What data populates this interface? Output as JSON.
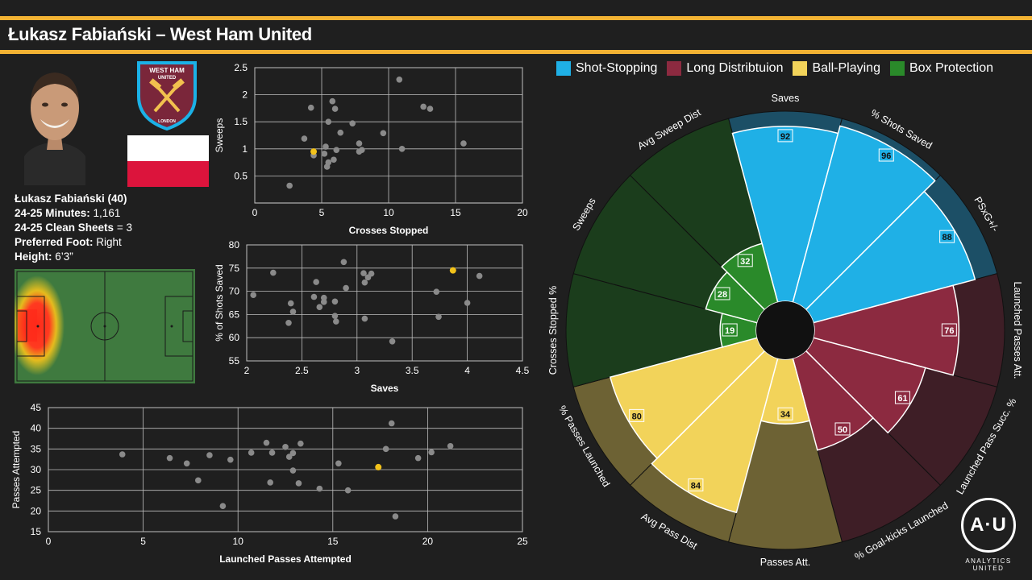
{
  "header": {
    "title": "Łukasz Fabiański – West Ham United"
  },
  "colors": {
    "accent": "#f2b233",
    "shot_stopping": "#1fb0e6",
    "long_distribution": "#8c2a40",
    "ball_playing": "#f2d35a",
    "box_protection": "#2a8a2a"
  },
  "player": {
    "name_age": "Łukasz Fabiański (40)",
    "minutes_label": "24-25 Minutes:",
    "minutes_value": "1,161",
    "clean_sheets_label": "24-25 Clean Sheets",
    "clean_sheets_value": "= 3",
    "foot_label": "Preferred Foot:",
    "foot_value": "Right",
    "height_label": "Height:",
    "height_value": "6’3”"
  },
  "crest": {
    "line1": "WEST HAM",
    "line2": "UNITED",
    "line3": "LONDON"
  },
  "legend": {
    "items": [
      {
        "label": "Shot-Stopping",
        "color": "#1fb0e6"
      },
      {
        "label": "Long Distribtuion",
        "color": "#8c2a40"
      },
      {
        "label": "Ball-Playing",
        "color": "#f2d35a"
      },
      {
        "label": "Box Protection",
        "color": "#2a8a2a"
      }
    ]
  },
  "logo": {
    "mark": "A·U",
    "text": "ANALYTICS UNITED"
  },
  "chart_data": [
    {
      "type": "scatter",
      "id": "sc1",
      "xlabel": "Crosses Stopped",
      "ylabel": "Sweeps",
      "xlim": [
        0,
        20
      ],
      "ylim": [
        0,
        2.5
      ],
      "xticks": [
        0,
        5,
        10,
        15,
        20
      ],
      "xtick_labels": [
        "0",
        "5",
        "10",
        "15",
        "20"
      ],
      "yticks": [
        0.5,
        1,
        1.5,
        2,
        2.5
      ],
      "ytick_labels": [
        "0.5",
        "1",
        "1.5",
        "2",
        "2.5"
      ],
      "points": [
        [
          2.6,
          0.32
        ],
        [
          3.7,
          1.19
        ],
        [
          4.2,
          1.76
        ],
        [
          4.4,
          0.88
        ],
        [
          5.2,
          0.91
        ],
        [
          5.3,
          1.04
        ],
        [
          5.4,
          0.67
        ],
        [
          5.5,
          0.75
        ],
        [
          5.5,
          1.5
        ],
        [
          5.8,
          1.88
        ],
        [
          5.9,
          0.8
        ],
        [
          6.0,
          1.74
        ],
        [
          6.1,
          0.98
        ],
        [
          6.4,
          1.3
        ],
        [
          7.3,
          1.47
        ],
        [
          7.8,
          0.95
        ],
        [
          7.8,
          1.1
        ],
        [
          8.0,
          0.98
        ],
        [
          9.6,
          1.29
        ],
        [
          10.8,
          2.28
        ],
        [
          11.0,
          1.0
        ],
        [
          12.6,
          1.78
        ],
        [
          13.1,
          1.74
        ],
        [
          15.6,
          1.1
        ]
      ],
      "highlight": [
        4.4,
        0.95
      ]
    },
    {
      "type": "scatter",
      "id": "sc2",
      "xlabel": "Saves",
      "ylabel": "% of Shots Saved",
      "xlim": [
        2.0,
        4.5
      ],
      "ylim": [
        55,
        80
      ],
      "xticks": [
        2.0,
        2.5,
        3.0,
        3.5,
        4.0,
        4.5
      ],
      "xtick_labels": [
        "2",
        "2.5",
        "3",
        "3.5",
        "4",
        "4.5"
      ],
      "yticks": [
        55,
        60,
        65,
        70,
        75,
        80
      ],
      "ytick_labels": [
        "55",
        "60",
        "65",
        "70",
        "75",
        "80"
      ],
      "points": [
        [
          2.06,
          69.2
        ],
        [
          2.24,
          74.0
        ],
        [
          2.38,
          63.2
        ],
        [
          2.4,
          67.4
        ],
        [
          2.42,
          65.6
        ],
        [
          2.61,
          68.8
        ],
        [
          2.63,
          72.0
        ],
        [
          2.66,
          66.6
        ],
        [
          2.7,
          68.6
        ],
        [
          2.7,
          67.7
        ],
        [
          2.8,
          67.8
        ],
        [
          2.8,
          64.7
        ],
        [
          2.81,
          63.5
        ],
        [
          2.88,
          76.3
        ],
        [
          2.9,
          70.7
        ],
        [
          3.06,
          73.9
        ],
        [
          3.07,
          64.1
        ],
        [
          3.07,
          71.9
        ],
        [
          3.1,
          73.0
        ],
        [
          3.13,
          73.8
        ],
        [
          3.32,
          59.2
        ],
        [
          3.72,
          69.9
        ],
        [
          3.74,
          64.5
        ],
        [
          4.0,
          67.5
        ],
        [
          4.11,
          73.3
        ]
      ],
      "highlight": [
        3.87,
        74.5
      ]
    },
    {
      "type": "scatter",
      "id": "sc3",
      "xlabel": "Launched Passes Attempted",
      "ylabel": "Passes Attempted",
      "xlim": [
        0,
        25
      ],
      "ylim": [
        15,
        45
      ],
      "xticks": [
        0,
        5,
        10,
        15,
        20,
        25
      ],
      "xtick_labels": [
        "0",
        "5",
        "10",
        "15",
        "20",
        "25"
      ],
      "yticks": [
        15,
        20,
        25,
        30,
        35,
        40,
        45
      ],
      "ytick_labels": [
        "15",
        "20",
        "25",
        "30",
        "35",
        "40",
        "45"
      ],
      "points": [
        [
          3.9,
          33.7
        ],
        [
          6.4,
          32.8
        ],
        [
          7.3,
          31.5
        ],
        [
          7.9,
          27.4
        ],
        [
          8.5,
          33.5
        ],
        [
          9.2,
          21.2
        ],
        [
          9.6,
          32.4
        ],
        [
          10.7,
          34.1
        ],
        [
          11.5,
          36.5
        ],
        [
          11.7,
          26.9
        ],
        [
          11.8,
          34.1
        ],
        [
          12.5,
          35.5
        ],
        [
          12.7,
          33.1
        ],
        [
          12.9,
          29.8
        ],
        [
          12.9,
          34.0
        ],
        [
          13.2,
          26.7
        ],
        [
          13.3,
          36.3
        ],
        [
          14.3,
          25.4
        ],
        [
          15.3,
          31.5
        ],
        [
          15.8,
          25.0
        ],
        [
          17.8,
          35.0
        ],
        [
          18.1,
          41.2
        ],
        [
          18.3,
          18.7
        ],
        [
          19.5,
          32.8
        ],
        [
          20.2,
          34.2
        ],
        [
          21.2,
          35.7
        ]
      ],
      "highlight": [
        17.4,
        30.6
      ]
    },
    {
      "type": "radar",
      "id": "radar",
      "segments": [
        {
          "label": "Saves",
          "value": 92,
          "group": "shot_stopping"
        },
        {
          "label": "% Shots Saved",
          "value": 96,
          "group": "shot_stopping"
        },
        {
          "label": "PSxG+/-",
          "value": 88,
          "group": "shot_stopping"
        },
        {
          "label": "Launched Passes Att.",
          "value": 76,
          "group": "long_distribution"
        },
        {
          "label": "Launched Pass Succ. %",
          "value": 61,
          "group": "long_distribution"
        },
        {
          "label": "% Goal-kicks Launched",
          "value": 50,
          "group": "long_distribution"
        },
        {
          "label": "Passes Att.",
          "value": 34,
          "group": "ball_playing"
        },
        {
          "label": "Avg Pass Dist",
          "value": 84,
          "group": "ball_playing"
        },
        {
          "label": "% Passes Launched",
          "value": 80,
          "group": "ball_playing"
        },
        {
          "label": "Crosses Stopped %",
          "value": 19,
          "group": "box_protection"
        },
        {
          "label": "Sweeps",
          "value": 28,
          "group": "box_protection"
        },
        {
          "label": "Avg Sweep Dist",
          "value": 32,
          "group": "box_protection"
        }
      ]
    }
  ]
}
